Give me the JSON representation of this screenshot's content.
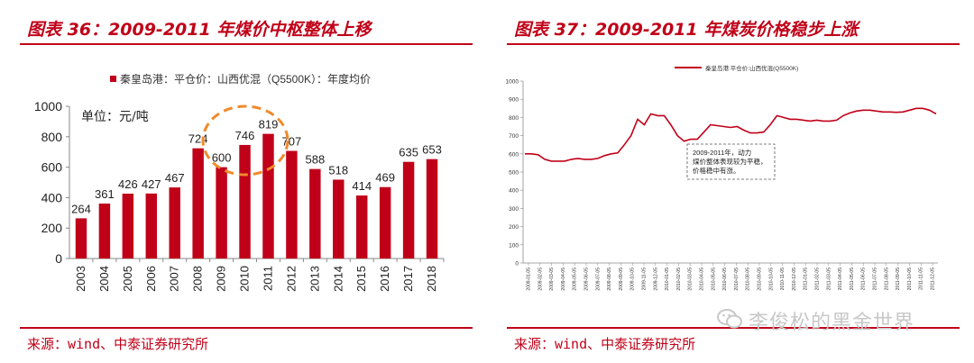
{
  "left_panel": {
    "title": "图表 36：2009-2011 年煤价中枢整体上移",
    "source": "来源：wind、中泰证券研究所",
    "unit_label": "单位：元/吨",
    "chart_data": {
      "type": "bar",
      "title": "",
      "legend": "秦皇岛港：平仓价：山西优混（Q5500K）：年度均价",
      "legend_position": "top-center",
      "color": "#c00018",
      "categories": [
        "2003",
        "2004",
        "2005",
        "2006",
        "2007",
        "2008",
        "2009",
        "2010",
        "2011",
        "2012",
        "2013",
        "2014",
        "2015",
        "2016",
        "2017",
        "2018"
      ],
      "values": [
        264,
        361,
        426,
        427,
        467,
        724,
        600,
        746,
        819,
        707,
        588,
        518,
        414,
        469,
        635,
        653
      ],
      "ylim": [
        0,
        1000
      ],
      "yticks": [
        0,
        200,
        400,
        600,
        800,
        1000
      ],
      "grid": false,
      "annotation": "circle around 2009-2011"
    }
  },
  "right_panel": {
    "title": "图表 37：2009-2011 年煤炭价格稳步上涨",
    "source": "来源：wind、中泰证券研究所",
    "chart_data": {
      "type": "line",
      "title": "",
      "legend": "秦皇岛港:平仓价:山西优混(Q5500K)",
      "legend_position": "top-center",
      "color": "#c00018",
      "x_tick_labels": [
        "2009-01-05",
        "2009-02-05",
        "2009-03-05",
        "2009-04-05",
        "2009-05-05",
        "2009-06-05",
        "2009-07-05",
        "2009-08-05",
        "2009-09-05",
        "2009-10-05",
        "2009-11-05",
        "2009-12-05",
        "2010-01-05",
        "2010-02-05",
        "2010-03-05",
        "2010-04-05",
        "2010-05-05",
        "2010-06-05",
        "2010-07-05",
        "2010-08-05",
        "2010-09-05",
        "2010-10-05",
        "2010-11-05",
        "2010-12-05",
        "2011-01-05",
        "2011-02-05",
        "2011-03-05",
        "2011-04-05",
        "2011-05-05",
        "2011-06-05",
        "2011-07-05",
        "2011-08-05",
        "2011-09-05",
        "2011-10-05",
        "2011-11-05",
        "2011-12-05"
      ],
      "values": [
        600,
        600,
        595,
        570,
        560,
        560,
        560,
        570,
        575,
        570,
        570,
        575,
        590,
        600,
        605,
        650,
        700,
        790,
        760,
        820,
        810,
        810,
        760,
        700,
        670,
        680,
        680,
        720,
        760,
        755,
        750,
        745,
        750,
        730,
        715,
        715,
        720,
        760,
        810,
        800,
        790,
        790,
        785,
        780,
        785,
        780,
        780,
        785,
        810,
        825,
        835,
        840,
        840,
        835,
        830,
        830,
        828,
        830,
        840,
        850,
        850,
        840,
        820
      ],
      "ylim": [
        0,
        1000
      ],
      "yticks": [
        0,
        100,
        200,
        300,
        400,
        500,
        600,
        700,
        800,
        900,
        1000
      ],
      "grid": false,
      "annotation": "2009-2011年，动力煤价整体表现较为平稳，价格稳中有涨。"
    }
  },
  "watermark": {
    "text": "李俊松的黑金世界",
    "icon": "wechat-icon"
  }
}
